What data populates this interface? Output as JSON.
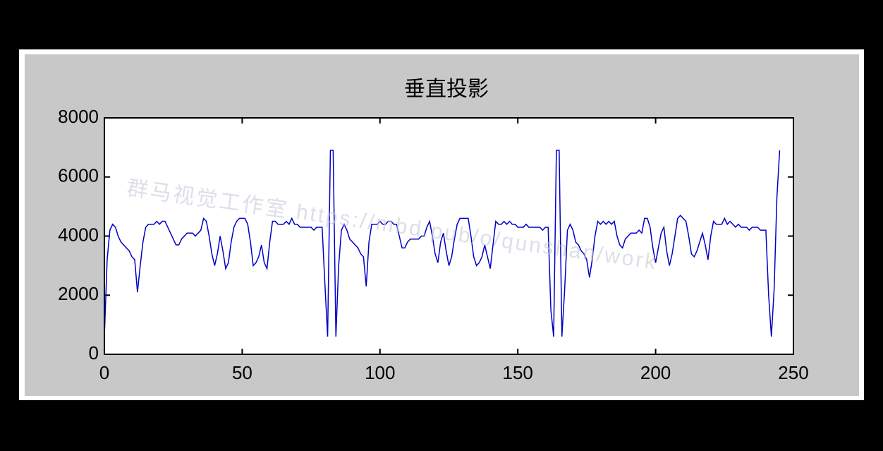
{
  "chart_data": {
    "type": "line",
    "title": "垂直投影",
    "watermark": "群马视觉工作室 https://mbd.pub/o/qunshan/work",
    "color": "#0000c8",
    "xlim": [
      0,
      250
    ],
    "xticks": [
      0,
      50,
      100,
      150,
      200,
      250
    ],
    "ylim": [
      0,
      8000
    ],
    "yticks": [
      0,
      2000,
      4000,
      6000,
      8000
    ],
    "x": [
      0,
      1,
      2,
      3,
      4,
      5,
      6,
      7,
      8,
      9,
      10,
      11,
      12,
      13,
      14,
      15,
      16,
      17,
      18,
      19,
      20,
      21,
      22,
      23,
      24,
      25,
      26,
      27,
      28,
      29,
      30,
      31,
      32,
      33,
      34,
      35,
      36,
      37,
      38,
      39,
      40,
      41,
      42,
      43,
      44,
      45,
      46,
      47,
      48,
      49,
      50,
      51,
      52,
      53,
      54,
      55,
      56,
      57,
      58,
      59,
      60,
      61,
      62,
      63,
      64,
      65,
      66,
      67,
      68,
      69,
      70,
      71,
      72,
      73,
      74,
      75,
      76,
      77,
      78,
      79,
      80,
      81,
      82,
      83,
      84,
      85,
      86,
      87,
      88,
      89,
      90,
      91,
      92,
      93,
      94,
      95,
      96,
      97,
      98,
      99,
      100,
      101,
      102,
      103,
      104,
      105,
      106,
      107,
      108,
      109,
      110,
      111,
      112,
      113,
      114,
      115,
      116,
      117,
      118,
      119,
      120,
      121,
      122,
      123,
      124,
      125,
      126,
      127,
      128,
      129,
      130,
      131,
      132,
      133,
      134,
      135,
      136,
      137,
      138,
      139,
      140,
      141,
      142,
      143,
      144,
      145,
      146,
      147,
      148,
      149,
      150,
      151,
      152,
      153,
      154,
      155,
      156,
      157,
      158,
      159,
      160,
      161,
      162,
      163,
      164,
      165,
      166,
      167,
      168,
      169,
      170,
      171,
      172,
      173,
      174,
      175,
      176,
      177,
      178,
      179,
      180,
      181,
      182,
      183,
      184,
      185,
      186,
      187,
      188,
      189,
      190,
      191,
      192,
      193,
      194,
      195,
      196,
      197,
      198,
      199,
      200,
      201,
      202,
      203,
      204,
      205,
      206,
      207,
      208,
      209,
      210,
      211,
      212,
      213,
      214,
      215,
      216,
      217,
      218,
      219,
      220,
      221,
      222,
      223,
      224,
      225,
      226,
      227,
      228,
      229,
      230,
      231,
      232,
      233,
      234,
      235,
      236,
      237,
      238,
      239,
      240,
      241,
      242,
      243,
      244,
      245
    ],
    "values": [
      600,
      3200,
      4200,
      4400,
      4300,
      4000,
      3800,
      3700,
      3600,
      3500,
      3300,
      3200,
      2100,
      3000,
      3800,
      4300,
      4400,
      4400,
      4400,
      4500,
      4400,
      4500,
      4500,
      4300,
      4100,
      3900,
      3700,
      3700,
      3900,
      4000,
      4100,
      4100,
      4100,
      4000,
      4100,
      4200,
      4600,
      4500,
      4000,
      3400,
      3000,
      3400,
      4000,
      3500,
      2900,
      3100,
      3800,
      4300,
      4500,
      4600,
      4600,
      4600,
      4400,
      3800,
      3000,
      3100,
      3300,
      3700,
      3100,
      2900,
      3800,
      4500,
      4500,
      4400,
      4400,
      4400,
      4500,
      4400,
      4600,
      4400,
      4400,
      4300,
      4300,
      4300,
      4300,
      4300,
      4200,
      4300,
      4300,
      4300,
      2400,
      600,
      6900,
      6900,
      600,
      3000,
      4200,
      4400,
      4200,
      3900,
      3800,
      3700,
      3600,
      3400,
      3300,
      2300,
      3800,
      4400,
      4400,
      4400,
      4500,
      4400,
      4400,
      4500,
      4500,
      4400,
      4400,
      4000,
      3600,
      3600,
      3800,
      3900,
      3900,
      3900,
      3900,
      4000,
      4000,
      4300,
      4500,
      4000,
      3400,
      3100,
      3800,
      4100,
      3500,
      3000,
      3300,
      3900,
      4400,
      4600,
      4600,
      4600,
      4600,
      4000,
      3300,
      3000,
      3100,
      3300,
      3700,
      3300,
      2900,
      3700,
      4500,
      4400,
      4400,
      4500,
      4400,
      4500,
      4400,
      4400,
      4300,
      4300,
      4300,
      4400,
      4300,
      4300,
      4300,
      4300,
      4300,
      4200,
      4300,
      4300,
      1500,
      600,
      6900,
      6900,
      600,
      2200,
      4200,
      4400,
      4200,
      3800,
      3700,
      3500,
      3400,
      3200,
      2600,
      3200,
      4000,
      4500,
      4400,
      4500,
      4400,
      4500,
      4400,
      4500,
      4000,
      3700,
      3600,
      3900,
      4000,
      4100,
      4100,
      4100,
      4200,
      4100,
      4600,
      4600,
      4300,
      3600,
      3100,
      3600,
      4100,
      4300,
      3500,
      3000,
      3400,
      4000,
      4600,
      4700,
      4600,
      4500,
      4000,
      3400,
      3300,
      3500,
      3800,
      4100,
      3700,
      3200,
      4000,
      4500,
      4400,
      4400,
      4400,
      4600,
      4400,
      4500,
      4400,
      4300,
      4400,
      4300,
      4300,
      4300,
      4200,
      4300,
      4300,
      4300,
      4200,
      4200,
      4200,
      2000,
      600,
      2200,
      5300,
      6900
    ]
  }
}
